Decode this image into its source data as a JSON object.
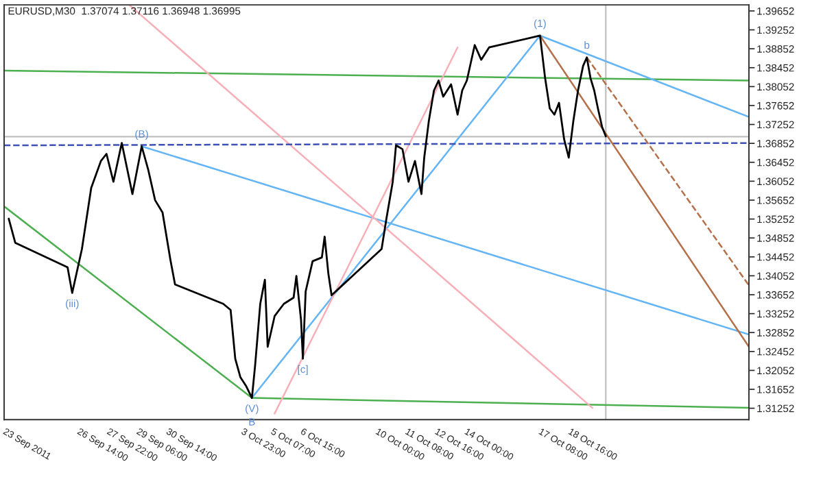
{
  "chart_data": {
    "type": "line",
    "title": "EURUSD,M30  1.37074 1.37116 1.36948 1.36995",
    "x": [
      "2011-09-23T09:00",
      "2011-09-23T16:00",
      "2011-09-26T00:30",
      "2011-09-26T05:30",
      "2011-09-26T16:00",
      "2011-09-27T02:00",
      "2011-09-27T12:30",
      "2011-09-27T18:30",
      "2011-09-28T02:00",
      "2011-09-28T11:00",
      "2011-09-28T22:30",
      "2011-09-29T08:30",
      "2011-09-29T15:30",
      "2011-09-29T23:00",
      "2011-09-30T07:00",
      "2011-09-30T15:30",
      "2011-09-30T20:30",
      "2011-10-03T00:30",
      "2011-10-03T08:30",
      "2011-10-03T13:30",
      "2011-10-03T19:00",
      "2011-10-04T01:00",
      "2011-10-04T07:30",
      "2011-10-04T11:00",
      "2011-10-04T16:30",
      "2011-10-04T19:30",
      "2011-10-04T21:30",
      "2011-10-05T00:30",
      "2011-10-05T08:00",
      "2011-10-05T18:00",
      "2011-10-06T04:30",
      "2011-10-06T07:30",
      "2011-10-06T12:30",
      "2011-10-06T14:30",
      "2011-10-06T17:30",
      "2011-10-07T01:00",
      "2011-10-07T11:00",
      "2011-10-07T14:00",
      "2011-10-07T18:00",
      "2011-10-07T21:30",
      "2011-10-10T03:30",
      "2011-10-10T08:30",
      "2011-10-10T15:30",
      "2011-10-10T19:00",
      "2011-10-11T02:00",
      "2011-10-11T08:30",
      "2011-10-11T15:30",
      "2011-10-11T22:30",
      "2011-10-12T01:30",
      "2011-10-12T06:30",
      "2011-10-12T12:00",
      "2011-10-12T17:00",
      "2011-10-12T22:00",
      "2011-10-13T06:30",
      "2011-10-13T13:30",
      "2011-10-13T18:30",
      "2011-10-13T23:30",
      "2011-10-14T08:00",
      "2011-10-14T15:00",
      "2011-10-14T23:30",
      "2011-10-17T06:30",
      "2011-10-17T12:00",
      "2011-10-17T17:00",
      "2011-10-17T22:00",
      "2011-10-18T03:00",
      "2011-10-18T08:30",
      "2011-10-18T13:30",
      "2011-10-18T18:30",
      "2011-10-18T23:30",
      "2011-10-19T05:00",
      "2011-10-19T09:00",
      "2011-10-19T13:00",
      "2011-10-19T17:00",
      "2011-10-19T21:00",
      "2011-10-20T01:30",
      "2011-10-20T05:30"
    ],
    "series": [
      {
        "color": "#000000",
        "values": [
          1.3526,
          1.3475,
          1.3423,
          1.3369,
          1.3462,
          1.3591,
          1.3648,
          1.3663,
          1.3604,
          1.3686,
          1.3578,
          1.3679,
          1.363,
          1.3565,
          1.3539,
          1.3439,
          1.3387,
          1.3346,
          1.3333,
          1.323,
          1.3191,
          1.3173,
          1.3147,
          1.3217,
          1.3346,
          1.3377,
          1.3397,
          1.3255,
          1.332,
          1.3346,
          1.3359,
          1.3405,
          1.3312,
          1.323,
          1.3372,
          1.3436,
          1.3444,
          1.3488,
          1.341,
          1.3364,
          1.3462,
          1.3524,
          1.3604,
          1.3681,
          1.3673,
          1.3604,
          1.3648,
          1.3578,
          1.3655,
          1.3733,
          1.3797,
          1.3818,
          1.3784,
          1.381,
          1.3746,
          1.3797,
          1.3818,
          1.3893,
          1.3862,
          1.3888,
          1.3913,
          1.3823,
          1.3759,
          1.3746,
          1.3771,
          1.3694,
          1.3655,
          1.3733,
          1.3797,
          1.3849,
          1.3867,
          1.3823,
          1.3797,
          1.3759,
          1.372,
          1.37
        ]
      },
      {
        "color": "#4caf50",
        "x": [
          "2011-09-23T04:00",
          "2011-10-26T16:00"
        ],
        "values": [
          1.3839,
          1.3818
        ]
      },
      {
        "color": "#4caf50",
        "x": [
          "2011-10-04T07:30",
          "2011-10-26T16:00"
        ],
        "values": [
          1.3147,
          1.3126
        ]
      },
      {
        "color": "#4caf50",
        "x": [
          "2011-09-23T04:00",
          "2011-10-04T07:30"
        ],
        "values": [
          1.3552,
          1.3147
        ]
      },
      {
        "color": "#64b5f6",
        "x": [
          "2011-09-29T08:30",
          "2011-10-26T16:00"
        ],
        "values": [
          1.3679,
          1.3281
        ]
      },
      {
        "color": "#64b5f6",
        "x": [
          "2011-10-17T06:30",
          "2011-10-26T16:00"
        ],
        "values": [
          1.3913,
          1.3741
        ]
      },
      {
        "color": "#64b5f6",
        "x": [
          "2011-10-04T07:30",
          "2011-10-17T06:30"
        ],
        "values": [
          1.3147,
          1.3913
        ]
      },
      {
        "color": "#f8b0b8",
        "x": [
          "2011-09-28T19:00",
          "2011-10-19T15:00"
        ],
        "values": [
          1.3978,
          1.3126
        ]
      },
      {
        "color": "#f8b0b8",
        "x": [
          "2011-10-05T08:00",
          "2011-10-13T13:30"
        ],
        "values": [
          1.3114,
          1.3888
        ]
      },
      {
        "color": "#3f51b5",
        "line_style": "dashed",
        "x": [
          "2011-09-23T04:00",
          "2011-10-26T16:00"
        ],
        "values": [
          1.3681,
          1.3686
        ]
      },
      {
        "color": "#b5704a",
        "x": [
          "2011-10-17T06:30",
          "2011-10-26T16:00"
        ],
        "values": [
          1.3913,
          1.3255
        ]
      },
      {
        "color": "#b5704a",
        "line_style": "dashed",
        "x": [
          "2011-10-19T09:00",
          "2011-10-26T16:00"
        ],
        "values": [
          1.3867,
          1.3385
        ]
      }
    ],
    "ref_lines": [
      {
        "axis": "y",
        "value": 1.36995,
        "color": "#c0c0c0"
      },
      {
        "axis": "x",
        "value": "2011-10-20T05:30",
        "color": "#c0c0c0"
      }
    ],
    "annotations": [
      {
        "text": "(V)",
        "x": "2011-10-04T07:30",
        "y": 1.3147
      },
      {
        "text": "B",
        "x": "2011-10-04T07:30",
        "y": 1.3147
      },
      {
        "text": "(B)",
        "x": "2011-09-29T08:30",
        "y": 1.3679
      },
      {
        "text": "(iii)",
        "x": "2011-09-26T05:30",
        "y": 1.3369
      },
      {
        "text": "(1)",
        "x": "2011-10-17T06:30",
        "y": 1.3913
      },
      {
        "text": "b",
        "x": "2011-10-19T09:00",
        "y": 1.3867
      },
      {
        "text": "[c]",
        "x": "2011-10-06T14:30",
        "y": 1.323
      }
    ],
    "xlim": [
      "2011-09-23T04:00",
      "2011-10-26T16:00"
    ],
    "ylim": [
      1.3101,
      1.3978
    ],
    "xticks": [
      {
        "value": "2011-09-23T06:00",
        "label": "23 Sep 2011"
      },
      {
        "value": "2011-09-26T14:00",
        "label": "26 Sep 14:00"
      },
      {
        "value": "2011-09-27T22:00",
        "label": "27 Sep 22:00"
      },
      {
        "value": "2011-09-29T06:00",
        "label": "29 Sep 06:00"
      },
      {
        "value": "2011-09-30T14:00",
        "label": "30 Sep 14:00"
      },
      {
        "value": "2011-10-03T23:00",
        "label": "3 Oct 23:00"
      },
      {
        "value": "2011-10-05T07:00",
        "label": "5 Oct 07:00"
      },
      {
        "value": "2011-10-06T15:00",
        "label": "6 Oct 15:00"
      },
      {
        "value": "2011-10-10T00:00",
        "label": "10 Oct 00:00"
      },
      {
        "value": "2011-10-11T08:00",
        "label": "11 Oct 08:00"
      },
      {
        "value": "2011-10-12T16:00",
        "label": "12 Oct 16:00"
      },
      {
        "value": "2011-10-14T00:00",
        "label": "14 Oct 00:00"
      },
      {
        "value": "2011-10-17T08:00",
        "label": "17 Oct 08:00"
      },
      {
        "value": "2011-10-18T16:00",
        "label": "18 Oct 16:00"
      }
    ],
    "yticks": [
      1.31252,
      1.31652,
      1.32052,
      1.32452,
      1.32852,
      1.33252,
      1.33652,
      1.34052,
      1.34452,
      1.34852,
      1.35252,
      1.35652,
      1.36052,
      1.36452,
      1.36852,
      1.37252,
      1.37652,
      1.38052,
      1.38452,
      1.38852,
      1.39252,
      1.39652
    ],
    "grid": false,
    "legend": false
  }
}
